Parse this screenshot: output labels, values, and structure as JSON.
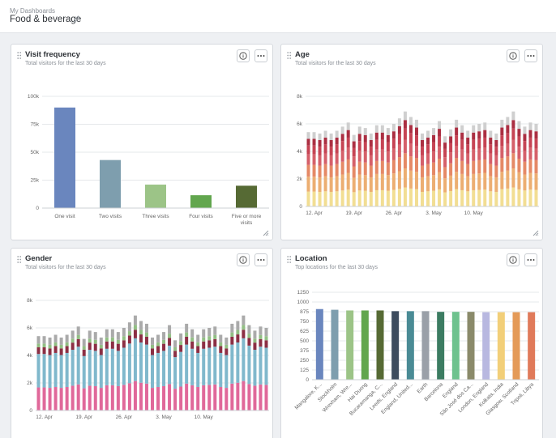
{
  "header": {
    "breadcrumb": "My Dashboards",
    "title": "Food & beverage"
  },
  "cards": [
    {
      "title": "Visit frequency",
      "subtitle": "Total visitors for the last 30 days"
    },
    {
      "title": "Age",
      "subtitle": "Total visitors for the last 30 days"
    },
    {
      "title": "Gender",
      "subtitle": "Total visitors for the last 30 days"
    },
    {
      "title": "Location",
      "subtitle": "Top locations for the last 30 days"
    }
  ],
  "icons": [
    "drag-handle-icon",
    "info-icon",
    "more-icon",
    "resize-icon",
    "pencil-icon"
  ],
  "chart_data": [
    {
      "type": "bar",
      "categories": [
        "One visit",
        "Two visits",
        "Three visits",
        "Four visits",
        "Five or more visits"
      ],
      "values": [
        90000,
        43000,
        21000,
        11500,
        20000
      ],
      "colors": [
        "#6a86be",
        "#7e9eae",
        "#9cc487",
        "#62a64e",
        "#566a34"
      ],
      "yticks": [
        "0",
        "25k",
        "50k",
        "75k",
        "100k"
      ],
      "ylim": [
        0,
        100000
      ]
    },
    {
      "type": "bar",
      "stacked": true,
      "x_ticks": [
        "12. Apr",
        "19. Apr",
        "26. Apr",
        "3. May",
        "10. May"
      ],
      "yticks": [
        "0",
        "2k",
        "4k",
        "6k",
        "8k"
      ],
      "ylim": [
        0,
        8000
      ],
      "colors": [
        "#f2de93",
        "#ecae72",
        "#e58966",
        "#d5606a",
        "#c64454",
        "#ab2f42",
        "#cfcfcf"
      ],
      "totals": [
        5400,
        5400,
        5300,
        5500,
        5300,
        5500,
        5800,
        6100,
        5200,
        5800,
        5700,
        5300,
        5900,
        5900,
        5700,
        6000,
        6400,
        6900,
        6500,
        6300,
        5300,
        5500,
        5700,
        6200,
        5100,
        5600,
        6300,
        5900,
        5500,
        5900,
        6000,
        6100,
        5500,
        5300,
        6300,
        6500,
        6900,
        6200,
        5800,
        6100,
        6000
      ]
    },
    {
      "type": "bar",
      "stacked": true,
      "x_ticks": [
        "12. Apr",
        "19. Apr",
        "26. Apr",
        "3. May",
        "10. May"
      ],
      "yticks": [
        "0",
        "2k",
        "4k",
        "6k",
        "8k"
      ],
      "ylim": [
        0,
        8000
      ],
      "colors": [
        "#e0689a",
        "#80b8cc",
        "#8c2f44",
        "#92bf84",
        "#aaaaaa"
      ],
      "totals": [
        5400,
        5400,
        5300,
        5500,
        5300,
        5500,
        5800,
        6100,
        5200,
        5800,
        5700,
        5300,
        5900,
        5900,
        5700,
        6000,
        6400,
        6900,
        6500,
        6300,
        5300,
        5500,
        5700,
        6200,
        5100,
        5600,
        6300,
        5900,
        5500,
        5900,
        6000,
        6100,
        5500,
        5300,
        6300,
        6500,
        6900,
        6200,
        5800,
        6100,
        6000
      ]
    },
    {
      "type": "bar",
      "categories": [
        "Mangalore, K...",
        "Stockholm",
        "Wrexham, Wre...",
        "Hai Duong",
        "Bucaramanga, C...",
        "Leeds, England",
        "England, United...",
        "Earth",
        "Barcelona",
        "England",
        "São José dos Ca...",
        "London, England",
        "Kolkata, India",
        "Glasgow, Scotland",
        "Tripoli, Libya"
      ],
      "values": [
        1010,
        1000,
        990,
        990,
        990,
        980,
        980,
        980,
        970,
        970,
        970,
        965,
        965,
        965,
        965
      ],
      "colors": [
        "#6a86be",
        "#7e9eae",
        "#9cc487",
        "#62a64e",
        "#566a34",
        "#3d4c5e",
        "#4a8b95",
        "#9aa0a8",
        "#3c7c62",
        "#6ec28e",
        "#8a8a6a",
        "#b8b8e0",
        "#f2cf79",
        "#e49a58",
        "#e07a5a"
      ],
      "yticks": [
        "0",
        "125",
        "250",
        "375",
        "500",
        "625",
        "750",
        "875",
        "1000",
        "1250"
      ],
      "ylim": [
        0,
        1250
      ]
    }
  ]
}
